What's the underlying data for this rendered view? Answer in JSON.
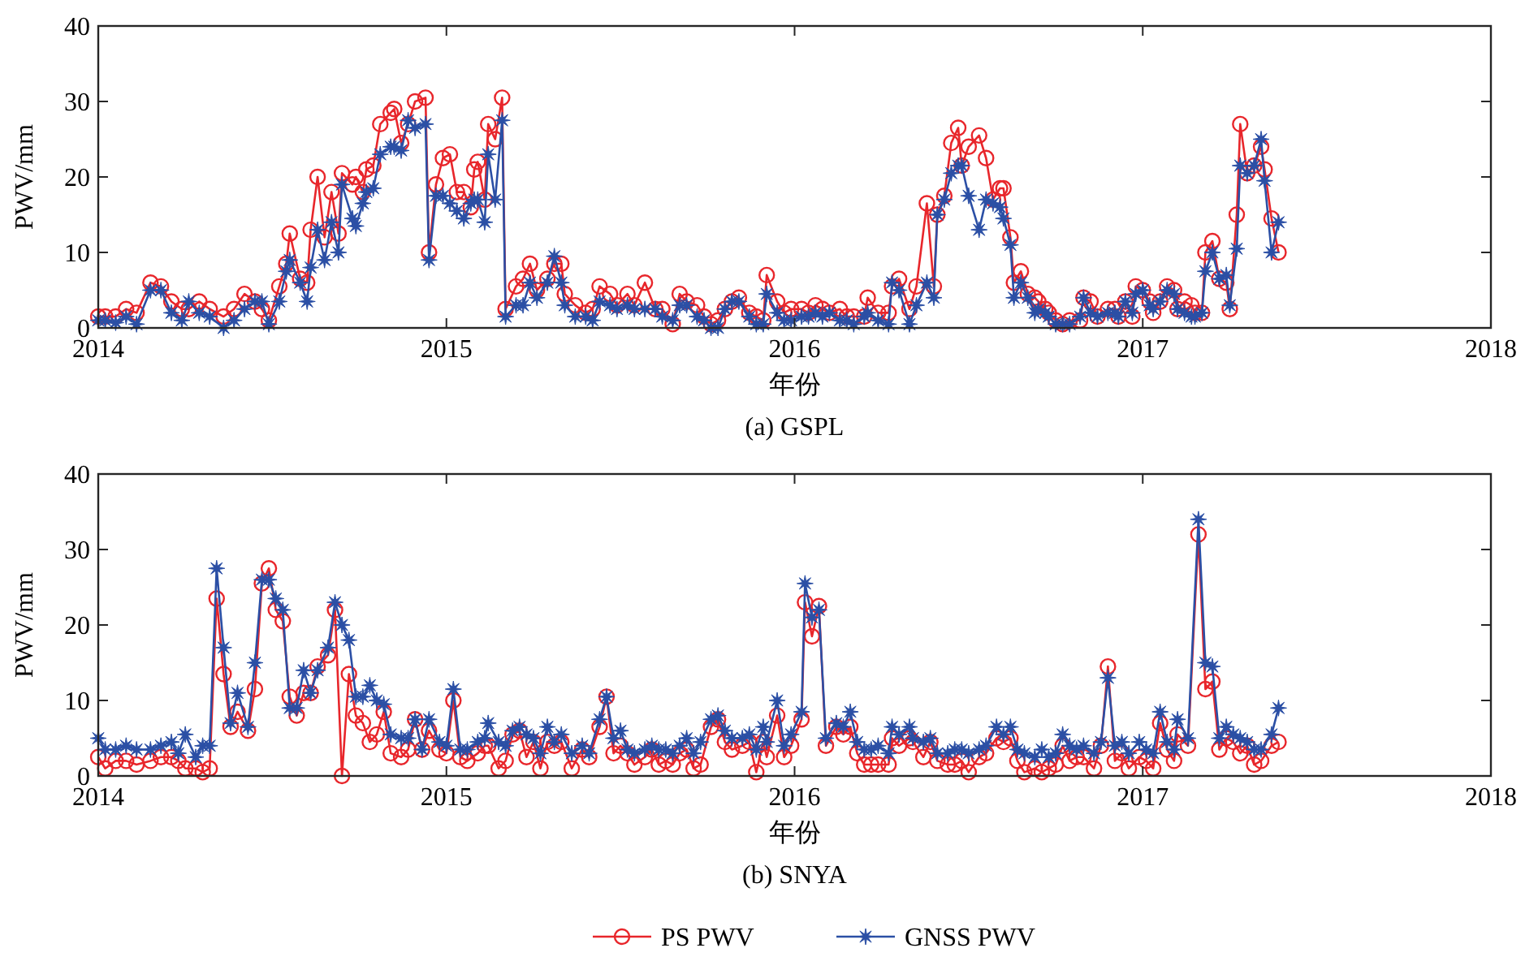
{
  "chart_data": [
    {
      "type": "line",
      "title": "(a) GSPL",
      "xlabel": "年份",
      "ylabel": "PWV/mm",
      "xlim": [
        2014,
        2018
      ],
      "xticks": [
        2014,
        2015,
        2016,
        2017,
        2018
      ],
      "ylim": [
        0,
        40
      ],
      "yticks": [
        0,
        10,
        20,
        30,
        40
      ],
      "grid": false,
      "x": [
        2014.0,
        2014.02,
        2014.05,
        2014.08,
        2014.11,
        2014.15,
        2014.18,
        2014.21,
        2014.24,
        2014.26,
        2014.29,
        2014.32,
        2014.36,
        2014.39,
        2014.42,
        2014.45,
        2014.47,
        2014.49,
        2014.52,
        2014.54,
        2014.55,
        2014.58,
        2014.6,
        2014.61,
        2014.63,
        2014.65,
        2014.67,
        2014.69,
        2014.7,
        2014.73,
        2014.74,
        2014.76,
        2014.77,
        2014.79,
        2014.81,
        2014.84,
        2014.85,
        2014.87,
        2014.89,
        2014.91,
        2014.94,
        2014.95,
        2014.97,
        2014.99,
        2015.01,
        2015.03,
        2015.05,
        2015.07,
        2015.08,
        2015.09,
        2015.11,
        2015.12,
        2015.14,
        2015.16,
        2015.17,
        2015.2,
        2015.22,
        2015.24,
        2015.26,
        2015.29,
        2015.31,
        2015.33,
        2015.34,
        2015.37,
        2015.4,
        2015.42,
        2015.44,
        2015.47,
        2015.49,
        2015.52,
        2015.54,
        2015.57,
        2015.6,
        2015.62,
        2015.65,
        2015.67,
        2015.69,
        2015.72,
        2015.74,
        2015.76,
        2015.78,
        2015.8,
        2015.82,
        2015.84,
        2015.87,
        2015.89,
        2015.91,
        2015.92,
        2015.95,
        2015.97,
        2015.99,
        2016.02,
        2016.04,
        2016.06,
        2016.08,
        2016.1,
        2016.13,
        2016.15,
        2016.17,
        2016.2,
        2016.21,
        2016.24,
        2016.27,
        2016.28,
        2016.3,
        2016.33,
        2016.35,
        2016.38,
        2016.4,
        2016.41,
        2016.43,
        2016.45,
        2016.47,
        2016.48,
        2016.5,
        2016.53,
        2016.55,
        2016.57,
        2016.59,
        2016.6,
        2016.62,
        2016.63,
        2016.65,
        2016.67,
        2016.69,
        2016.7,
        2016.72,
        2016.73,
        2016.75,
        2016.77,
        2016.79,
        2016.82,
        2016.83,
        2016.85,
        2016.87,
        2016.9,
        2016.92,
        2016.93,
        2016.95,
        2016.97,
        2016.98,
        2017.0,
        2017.02,
        2017.03,
        2017.05,
        2017.07,
        2017.09,
        2017.1,
        2017.12,
        2017.14,
        2017.15,
        2017.17,
        2017.18,
        2017.2,
        2017.22,
        2017.24,
        2017.25,
        2017.27,
        2017.28,
        2017.3,
        2017.32,
        2017.34,
        2017.35,
        2017.37,
        2017.39
      ],
      "series": [
        {
          "color": "#e8262b",
          "marker": "circle",
          "values": [
            1.5,
            1.5,
            1.5,
            2.5,
            2,
            6,
            5.5,
            3.5,
            2.5,
            2.5,
            3.5,
            2.5,
            1.5,
            2.5,
            4.5,
            3.5,
            2.5,
            1,
            5.5,
            8.5,
            12.5,
            6.5,
            6,
            13,
            20,
            12,
            18,
            12.5,
            20.5,
            19,
            20,
            18,
            21,
            21.5,
            27,
            28.5,
            29,
            24.5,
            27,
            30,
            30.5,
            10,
            19,
            22.5,
            23,
            18,
            18,
            16,
            21,
            22,
            17,
            27,
            25,
            30.5,
            2.5,
            5.5,
            6.5,
            8.5,
            5,
            6.5,
            8.5,
            8.5,
            4.5,
            3,
            2,
            2.5,
            5.5,
            4.5,
            3,
            4.5,
            3,
            6,
            2.5,
            2.5,
            0.5,
            4.5,
            3.5,
            3,
            1.5,
            0.5,
            1,
            2.5,
            3.5,
            4,
            2,
            1.5,
            1,
            7,
            3.5,
            2,
            2.5,
            2.5,
            2,
            3,
            2.5,
            2,
            2.5,
            1.5,
            1.5,
            1.5,
            4,
            2,
            2,
            5.5,
            6.5,
            2.5,
            5.5,
            16.5,
            5.5,
            15,
            17.5,
            24.5,
            26.5,
            21.5,
            24,
            25.5,
            22.5,
            17,
            18.5,
            18.5,
            12,
            6,
            7.5,
            4.5,
            4,
            3.5,
            2.5,
            2,
            1,
            0.5,
            1,
            1,
            4,
            3.5,
            1.5,
            2.5,
            2.5,
            1.5,
            3.5,
            1.5,
            5.5,
            5,
            3.5,
            2,
            3.5,
            5.5,
            5,
            2.5,
            3.5,
            3,
            2,
            2,
            10,
            11.5,
            6.5,
            6,
            2.5,
            15,
            27,
            20.5,
            21.5,
            24,
            21,
            14.5,
            10
          ]
        },
        {
          "color": "#2b4fa5",
          "marker": "star",
          "values": [
            1,
            1,
            0.7,
            1.5,
            0.5,
            5,
            5,
            2,
            1,
            3.5,
            2,
            1.5,
            0,
            1,
            2.5,
            3.5,
            3.5,
            0.5,
            3.5,
            7.5,
            9,
            6,
            3.5,
            8,
            13,
            9,
            14,
            10,
            19,
            14.5,
            13.5,
            16.5,
            18,
            18.5,
            23,
            24,
            24,
            23.5,
            27.5,
            26.5,
            27,
            9,
            17.5,
            17.5,
            16.5,
            15.5,
            14.5,
            16.5,
            17,
            17,
            14,
            23,
            17,
            27.5,
            1.5,
            3,
            3,
            6,
            4,
            6,
            9.5,
            6,
            3,
            1.5,
            1.5,
            1,
            3.5,
            3,
            2.5,
            3,
            2.5,
            2.5,
            2.5,
            1.5,
            1,
            3,
            3,
            1.5,
            1,
            0,
            0,
            2.5,
            3.5,
            3.5,
            1.5,
            0.5,
            0.5,
            4.5,
            2,
            1,
            1,
            1.5,
            1.5,
            2,
            1.5,
            2,
            1,
            1,
            0.5,
            1.5,
            2,
            1,
            0.5,
            6,
            5,
            0.5,
            3,
            6,
            4,
            15,
            17,
            20.5,
            21.5,
            21.5,
            17.5,
            13,
            17,
            16.5,
            16,
            14.5,
            11,
            4,
            6,
            4,
            2,
            2.5,
            2,
            1.5,
            0.5,
            0.5,
            0.5,
            1.5,
            4,
            2,
            1.5,
            2,
            2,
            1.5,
            3.5,
            2,
            4.5,
            5,
            3,
            2.5,
            3.5,
            5,
            4.5,
            2.5,
            2,
            1.5,
            1.5,
            2,
            7.5,
            10,
            6.5,
            7,
            3,
            10.5,
            21.5,
            20.5,
            21.5,
            25,
            19.5,
            10,
            14
          ]
        }
      ]
    },
    {
      "type": "line",
      "title": "(b) SNYA",
      "xlabel": "年份",
      "ylabel": "PWV/mm",
      "xlim": [
        2014,
        2018
      ],
      "xticks": [
        2014,
        2015,
        2016,
        2017,
        2018
      ],
      "ylim": [
        0,
        40
      ],
      "yticks": [
        0,
        10,
        20,
        30,
        40
      ],
      "grid": false,
      "legend": "bottom",
      "x": [
        2014.0,
        2014.02,
        2014.05,
        2014.08,
        2014.11,
        2014.15,
        2014.18,
        2014.21,
        2014.23,
        2014.25,
        2014.28,
        2014.3,
        2014.32,
        2014.34,
        2014.36,
        2014.38,
        2014.4,
        2014.43,
        2014.45,
        2014.47,
        2014.49,
        2014.51,
        2014.53,
        2014.55,
        2014.57,
        2014.59,
        2014.61,
        2014.63,
        2014.66,
        2014.68,
        2014.7,
        2014.72,
        2014.74,
        2014.76,
        2014.78,
        2014.8,
        2014.82,
        2014.84,
        2014.87,
        2014.89,
        2014.91,
        2014.93,
        2014.95,
        2014.98,
        2015.0,
        2015.02,
        2015.04,
        2015.06,
        2015.09,
        2015.11,
        2015.12,
        2015.15,
        2015.17,
        2015.19,
        2015.21,
        2015.23,
        2015.25,
        2015.27,
        2015.29,
        2015.31,
        2015.33,
        2015.36,
        2015.39,
        2015.41,
        2015.44,
        2015.46,
        2015.48,
        2015.5,
        2015.52,
        2015.54,
        2015.57,
        2015.59,
        2015.61,
        2015.63,
        2015.65,
        2015.67,
        2015.69,
        2015.71,
        2015.73,
        2015.76,
        2015.78,
        2015.8,
        2015.82,
        2015.85,
        2015.87,
        2015.89,
        2015.91,
        2015.92,
        2015.95,
        2015.97,
        2015.99,
        2016.02,
        2016.03,
        2016.05,
        2016.07,
        2016.09,
        2016.12,
        2016.14,
        2016.16,
        2016.18,
        2016.2,
        2016.22,
        2016.24,
        2016.27,
        2016.28,
        2016.3,
        2016.33,
        2016.34,
        2016.37,
        2016.39,
        2016.41,
        2016.44,
        2016.46,
        2016.48,
        2016.5,
        2016.53,
        2016.55,
        2016.58,
        2016.6,
        2016.62,
        2016.64,
        2016.66,
        2016.69,
        2016.71,
        2016.73,
        2016.75,
        2016.77,
        2016.79,
        2016.81,
        2016.83,
        2016.86,
        2016.88,
        2016.9,
        2016.92,
        2016.94,
        2016.96,
        2016.99,
        2017.01,
        2017.03,
        2017.05,
        2017.07,
        2017.09,
        2017.1,
        2017.13,
        2017.16,
        2017.18,
        2017.2,
        2017.22,
        2017.24,
        2017.26,
        2017.28,
        2017.3,
        2017.32,
        2017.34,
        2017.37,
        2017.39
      ],
      "series": [
        {
          "name": "PS PWV",
          "color": "#e8262b",
          "marker": "circle",
          "values": [
            2.5,
            1,
            2,
            2,
            1.5,
            2,
            2.5,
            2.5,
            2,
            1,
            1,
            0.5,
            1,
            23.5,
            13.5,
            6.5,
            8.5,
            6,
            11.5,
            25.5,
            27.5,
            22,
            20.5,
            10.5,
            8,
            11,
            11,
            14.5,
            16,
            22,
            0,
            13.5,
            8,
            7,
            4.5,
            5.5,
            8.5,
            3,
            2.5,
            3.5,
            7.5,
            3.5,
            6,
            3.5,
            3,
            10,
            2.5,
            2,
            3,
            4,
            4,
            1,
            2,
            5.5,
            6,
            2.5,
            4.5,
            1,
            4.5,
            4,
            4.5,
            1,
            3.5,
            2.5,
            6.5,
            10.5,
            3,
            4,
            3,
            1.5,
            2.5,
            3.5,
            1.5,
            2,
            1.5,
            3,
            3.5,
            1,
            1.5,
            6.5,
            7.5,
            4.5,
            3.5,
            4,
            4.5,
            0.5,
            4.5,
            2.5,
            8,
            2.5,
            4,
            7.5,
            23,
            18.5,
            22.5,
            4,
            6.5,
            5.5,
            6.5,
            3,
            1.5,
            1.5,
            1.5,
            1.5,
            5,
            4,
            5,
            4.5,
            2.5,
            4.5,
            2,
            1.5,
            1.5,
            2,
            0.5,
            2.5,
            3,
            5,
            4.5,
            5,
            2,
            0.5,
            1,
            0.5,
            1,
            1.5,
            4,
            2,
            2.5,
            2.5,
            1,
            4,
            14.5,
            2,
            3,
            1,
            2.5,
            2,
            1,
            7,
            3.5,
            2,
            5.5,
            4,
            32,
            11.5,
            12.5,
            3.5,
            5,
            4.5,
            3,
            4,
            1.5,
            2,
            4,
            4.5
          ]
        },
        {
          "name": "GNSS PWV",
          "color": "#2b4fa5",
          "marker": "star",
          "values": [
            5,
            3.5,
            3.5,
            4,
            3.5,
            3.5,
            4,
            4.5,
            3,
            5.5,
            2.5,
            4,
            4,
            27.5,
            17,
            7,
            11,
            6.5,
            15,
            26,
            26,
            23.5,
            22,
            9,
            9,
            14,
            11,
            14,
            17,
            23,
            20,
            18,
            10.5,
            10.5,
            12,
            10,
            9.5,
            5.5,
            5,
            5,
            7.5,
            3.5,
            7.5,
            4.5,
            4,
            11.5,
            3.5,
            3.5,
            4.5,
            5,
            7,
            4.5,
            4,
            6,
            6.5,
            5.5,
            5,
            3,
            6.5,
            4.5,
            5.5,
            3,
            4,
            3,
            7.5,
            10.5,
            5,
            6,
            3.5,
            3,
            3.5,
            4,
            3.5,
            3.5,
            3,
            4,
            5,
            3,
            4.5,
            7.5,
            8,
            6,
            5,
            5,
            5.5,
            3.5,
            6.5,
            4.5,
            10,
            4,
            5.5,
            8.5,
            25.5,
            21,
            22,
            5,
            7,
            6.5,
            8.5,
            4.5,
            3.5,
            3.5,
            4,
            3,
            6.5,
            5.5,
            6.5,
            5,
            4.5,
            5,
            3,
            3,
            3.5,
            3.5,
            3,
            3.5,
            4,
            6.5,
            5.5,
            6.5,
            3.5,
            3,
            2.5,
            3.5,
            2.5,
            3,
            5.5,
            4,
            3.5,
            4,
            3,
            4.5,
            13,
            4,
            4.5,
            3,
            4.5,
            3.5,
            3,
            8.5,
            4.5,
            3.5,
            7.5,
            5,
            34,
            15,
            14.5,
            5,
            6.5,
            5.5,
            5,
            4.5,
            3.5,
            3.5,
            5.5,
            9
          ]
        }
      ]
    }
  ]
}
